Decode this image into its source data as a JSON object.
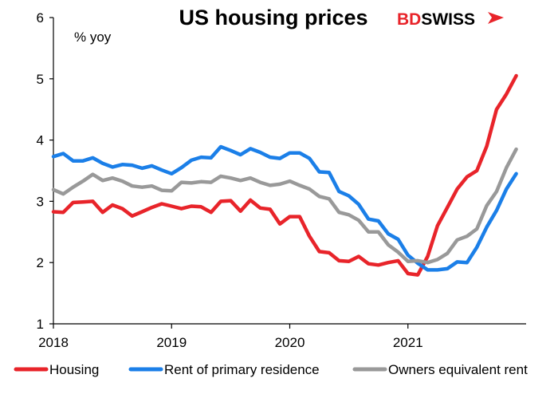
{
  "chart_data": {
    "type": "line",
    "title": "US housing prices",
    "ylabel": "% yoy",
    "xlabel": "",
    "ylim": [
      1,
      6
    ],
    "yticks": [
      1,
      2,
      3,
      4,
      5,
      6
    ],
    "xticks": [
      {
        "label": "2018",
        "x": 0
      },
      {
        "label": "2019",
        "x": 12
      },
      {
        "label": "2020",
        "x": 24
      },
      {
        "label": "2021",
        "x": 36
      }
    ],
    "xlim": [
      0,
      48
    ],
    "x": [
      0,
      1,
      2,
      3,
      4,
      5,
      6,
      7,
      8,
      9,
      10,
      11,
      12,
      13,
      14,
      15,
      16,
      17,
      18,
      19,
      20,
      21,
      22,
      23,
      24,
      25,
      26,
      27,
      28,
      29,
      30,
      31,
      32,
      33,
      34,
      35,
      36,
      37,
      38,
      39,
      40,
      41,
      42,
      43,
      44,
      45,
      46,
      47
    ],
    "series": [
      {
        "name": "Housing",
        "color": "#e8242a",
        "values": [
          2.83,
          2.82,
          2.98,
          2.99,
          3.0,
          2.82,
          2.94,
          2.88,
          2.76,
          2.83,
          2.9,
          2.96,
          2.92,
          2.88,
          2.92,
          2.91,
          2.82,
          3.0,
          3.01,
          2.84,
          3.02,
          2.89,
          2.87,
          2.63,
          2.75,
          2.75,
          2.43,
          2.18,
          2.16,
          2.03,
          2.02,
          2.1,
          1.98,
          1.96,
          2.0,
          2.03,
          1.82,
          1.8,
          2.1,
          2.6,
          2.9,
          3.2,
          3.4,
          3.5,
          3.9,
          4.5,
          4.75,
          5.05
        ]
      },
      {
        "name": "Rent of primary residence",
        "color": "#1b7fe8",
        "values": [
          3.73,
          3.78,
          3.66,
          3.66,
          3.71,
          3.62,
          3.56,
          3.6,
          3.59,
          3.54,
          3.58,
          3.51,
          3.45,
          3.55,
          3.67,
          3.72,
          3.71,
          3.89,
          3.83,
          3.76,
          3.86,
          3.8,
          3.72,
          3.7,
          3.79,
          3.79,
          3.7,
          3.48,
          3.47,
          3.16,
          3.09,
          2.95,
          2.71,
          2.68,
          2.47,
          2.38,
          2.12,
          1.99,
          1.88,
          1.88,
          1.9,
          2.01,
          2.0,
          2.25,
          2.58,
          2.85,
          3.2,
          3.45
        ]
      },
      {
        "name": "Owners equivalent rent",
        "color": "#999999",
        "values": [
          3.19,
          3.12,
          3.23,
          3.33,
          3.44,
          3.34,
          3.38,
          3.33,
          3.25,
          3.23,
          3.25,
          3.18,
          3.17,
          3.31,
          3.3,
          3.32,
          3.31,
          3.41,
          3.38,
          3.34,
          3.38,
          3.31,
          3.26,
          3.28,
          3.33,
          3.26,
          3.2,
          3.08,
          3.04,
          2.82,
          2.78,
          2.69,
          2.5,
          2.5,
          2.29,
          2.17,
          2.02,
          2.03,
          2.0,
          2.05,
          2.15,
          2.37,
          2.43,
          2.55,
          2.93,
          3.16,
          3.55,
          3.85
        ]
      }
    ],
    "legend_position": "bottom"
  },
  "logo": {
    "text_bd": "BD",
    "text_swiss": "SWISS",
    "color_bd": "#e8242a",
    "color_swiss": "#000000"
  }
}
